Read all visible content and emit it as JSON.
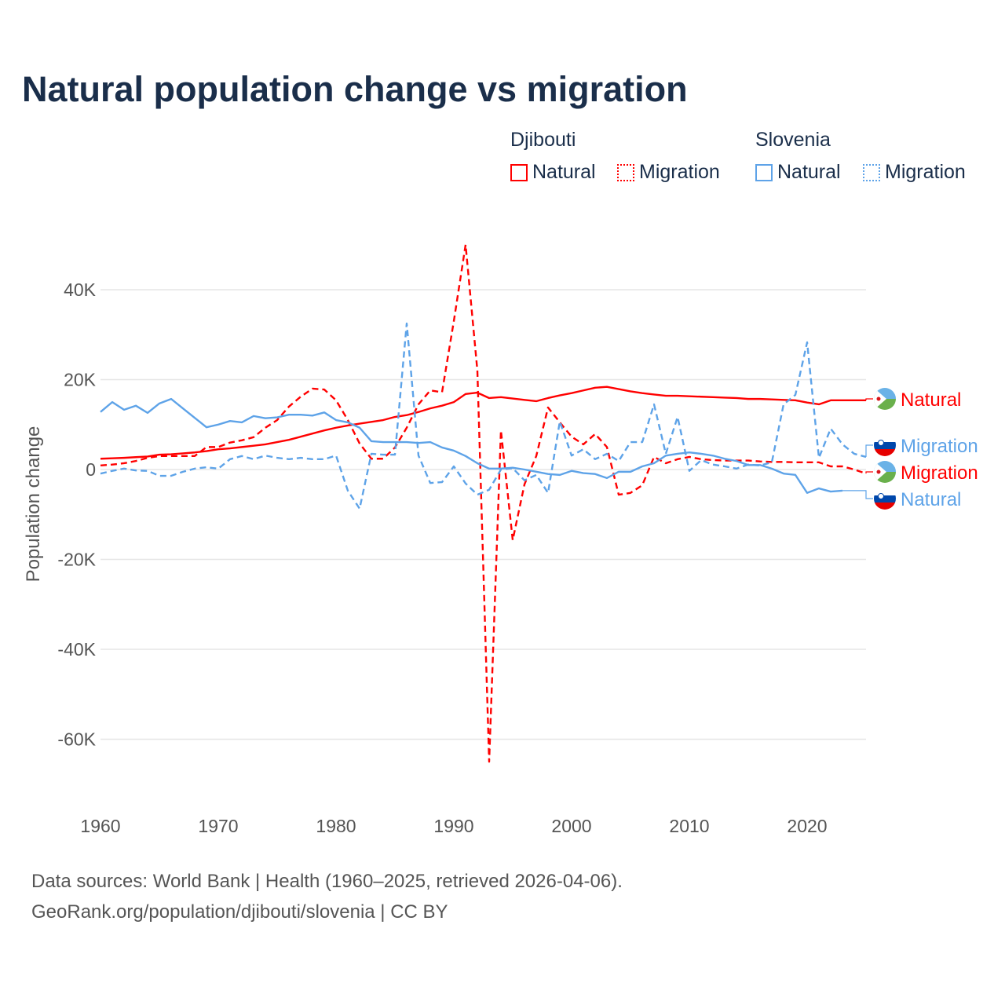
{
  "title": "Natural population change vs migration",
  "legend": {
    "groups": [
      {
        "name": "Djibouti",
        "color": "#ff0000",
        "items": [
          "Natural",
          "Migration"
        ]
      },
      {
        "name": "Slovenia",
        "color": "#5ea3e8",
        "items": [
          "Natural",
          "Migration"
        ]
      }
    ]
  },
  "footer": {
    "line1": "Data sources: World Bank | Health (1960–2025, retrieved 2026-04-06).",
    "line2": "GeoRank.org/population/djibouti/slovenia | CC BY"
  },
  "chart_data": {
    "type": "line",
    "title": "Natural population change vs migration",
    "xlabel": "",
    "ylabel": "Population change",
    "xlim": [
      1960,
      2025
    ],
    "ylim": [
      -70000,
      55000
    ],
    "yticks": [
      40000,
      20000,
      0,
      -20000,
      -40000,
      -60000
    ],
    "ytick_labels": [
      "40K",
      "20K",
      "0",
      "-20K",
      "-40K",
      "-60K"
    ],
    "xticks": [
      1960,
      1970,
      1980,
      1990,
      2000,
      2010,
      2020
    ],
    "grid": true,
    "series": [
      {
        "name": "Djibouti Natural",
        "country": "Djibouti",
        "label": "Natural",
        "color": "#ff0000",
        "dash": false,
        "start": 1960,
        "values": [
          2400,
          2500,
          2600,
          2750,
          2900,
          3300,
          3400,
          3600,
          3800,
          4100,
          4500,
          4700,
          5000,
          5300,
          5600,
          6100,
          6600,
          7300,
          8000,
          8700,
          9300,
          9800,
          10200,
          10600,
          11000,
          11700,
          12100,
          12800,
          13600,
          14200,
          15000,
          16800,
          17100,
          15900,
          16100,
          15800,
          15500,
          15200,
          15900,
          16500,
          17000,
          17600,
          18200,
          18400,
          17900,
          17400,
          17000,
          16700,
          16400,
          16400,
          16300,
          16200,
          16100,
          16000,
          15900,
          15700,
          15700,
          15600,
          15500,
          15400,
          14900,
          14500,
          15400,
          15400,
          15400,
          15400
        ]
      },
      {
        "name": "Djibouti Migration",
        "country": "Djibouti",
        "label": "Migration",
        "color": "#ff0000",
        "dash": true,
        "start": 1960,
        "values": [
          900,
          1100,
          1400,
          1900,
          2600,
          3000,
          3000,
          3000,
          3000,
          5000,
          5000,
          6000,
          6500,
          7200,
          9300,
          11000,
          14000,
          16200,
          18000,
          17800,
          15400,
          11000,
          5800,
          2400,
          2400,
          4900,
          9300,
          14500,
          17600,
          17200,
          33000,
          50000,
          22000,
          -65000,
          8700,
          -15700,
          -3300,
          3000,
          13800,
          10500,
          7300,
          5600,
          7900,
          5000,
          -5600,
          -5200,
          -3500,
          2800,
          1400,
          2300,
          2800,
          2300,
          2100,
          2000,
          2000,
          2000,
          1800,
          1700,
          1700,
          1600,
          1600,
          1600,
          700,
          700,
          0,
          -900
        ]
      },
      {
        "name": "Slovenia Natural",
        "country": "Slovenia",
        "label": "Natural",
        "color": "#5ea3e8",
        "dash": false,
        "start": 1960,
        "values": [
          12800,
          15000,
          13300,
          14200,
          12600,
          14700,
          15700,
          13600,
          11500,
          9400,
          10000,
          10800,
          10500,
          11900,
          11400,
          11600,
          12200,
          12200,
          12000,
          12700,
          11000,
          10500,
          9300,
          6300,
          6100,
          6100,
          6100,
          5900,
          6100,
          4900,
          4200,
          3000,
          1400,
          200,
          200,
          400,
          0,
          -500,
          -1000,
          -1200,
          -300,
          -800,
          -1000,
          -1900,
          -500,
          -500,
          700,
          1400,
          3100,
          3500,
          3800,
          3500,
          3100,
          2400,
          1900,
          1000,
          1000,
          200,
          -900,
          -1200,
          -5200,
          -4200,
          -4900,
          -4700
        ]
      },
      {
        "name": "Slovenia Migration",
        "country": "Slovenia",
        "label": "Migration",
        "color": "#5ea3e8",
        "dash": true,
        "start": 1960,
        "values": [
          -900,
          -300,
          200,
          -200,
          -300,
          -1400,
          -1400,
          -500,
          200,
          500,
          200,
          2300,
          3000,
          2300,
          3100,
          2600,
          2300,
          2600,
          2300,
          2300,
          3100,
          -4700,
          -8700,
          3500,
          3300,
          3300,
          32500,
          3100,
          -3000,
          -2800,
          700,
          -3100,
          -5600,
          -4500,
          0,
          300,
          -2400,
          -1200,
          -5200,
          10700,
          3100,
          4500,
          2300,
          3500,
          1900,
          6100,
          6100,
          14500,
          3500,
          11700,
          -300,
          2100,
          1100,
          700,
          200,
          1100,
          900,
          1600,
          14500,
          16600,
          28300,
          2600,
          9100,
          5600,
          3500,
          2800
        ]
      }
    ],
    "end_labels": [
      {
        "series": "Djibouti Natural",
        "text": "Natural",
        "flag": "Djibouti"
      },
      {
        "series": "Slovenia Migration",
        "text": "Migration",
        "flag": "Slovenia"
      },
      {
        "series": "Djibouti Migration",
        "text": "Migration",
        "flag": "Djibouti"
      },
      {
        "series": "Slovenia Natural",
        "text": "Natural",
        "flag": "Slovenia"
      }
    ]
  }
}
